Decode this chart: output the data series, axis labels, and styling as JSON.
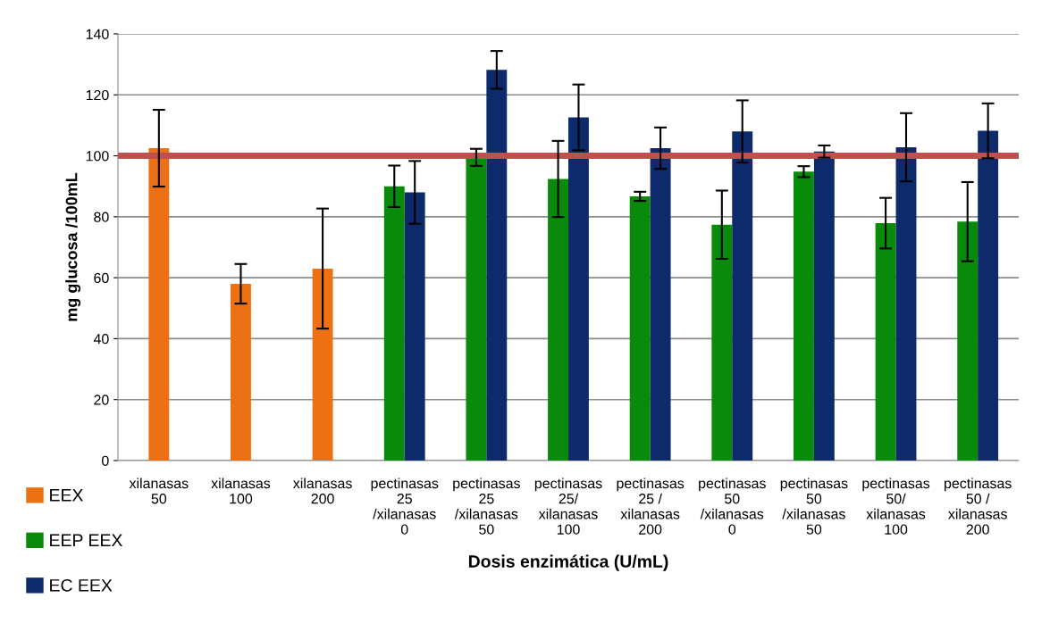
{
  "chart_data": {
    "type": "bar",
    "xlabel": "Dosis enzimática (U/mL)",
    "ylabel": "mg glucosa /100mL",
    "categories": [
      "xilanasas\n50",
      "xilanasas\n100",
      "xilanasas\n200",
      "pectinasas\n25\n/xilanasas\n0",
      "pectinasas\n25\n/xilanasas\n50",
      "pectinasas\n25/\nxilanasas\n100",
      "pectinasas\n25 /\nxilanasas\n200",
      "pectinasas\n50\n/xilanasas\n0",
      "pectinasas\n50\n/xilanasas\n50",
      "pectinasas\n50/\nxilanasas\n100",
      "pectinasas\n50 /\nxilanasas\n200"
    ],
    "series": [
      {
        "name": "EEX",
        "color": "#ec7014",
        "values": [
          102.5,
          58,
          63,
          null,
          null,
          null,
          null,
          null,
          null,
          null,
          null
        ],
        "errors": [
          12.6,
          6.5,
          19.7,
          null,
          null,
          null,
          null,
          null,
          null,
          null,
          null
        ]
      },
      {
        "name": "EEP EEX",
        "color": "#0a8a0a",
        "values": [
          null,
          null,
          null,
          90,
          99.5,
          92.4,
          86.7,
          77.4,
          94.8,
          77.9,
          78.4
        ],
        "errors": [
          null,
          null,
          null,
          6.8,
          2.8,
          12.5,
          1.5,
          11.2,
          1.8,
          8.3,
          13
        ]
      },
      {
        "name": "EC EEX",
        "color": "#0d2a6b",
        "values": [
          null,
          null,
          null,
          88,
          128.2,
          112.6,
          102.5,
          108,
          101.4,
          102.8,
          108.2
        ],
        "errors": [
          null,
          null,
          null,
          10.3,
          6.2,
          10.8,
          6.8,
          10.2,
          2,
          11.2,
          9
        ]
      }
    ],
    "ylim": [
      0,
      140
    ],
    "yticks": [
      0,
      20,
      40,
      60,
      80,
      100,
      120,
      140
    ],
    "grid": "y",
    "legend": "bottom left",
    "ref_lines": [
      {
        "axis": "y",
        "value": 100,
        "color": "#c0504d",
        "line_style": "solid"
      }
    ]
  }
}
